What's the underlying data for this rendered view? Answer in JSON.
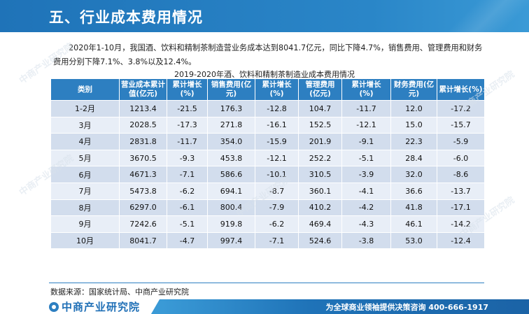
{
  "header": {
    "title": "五、行业成本费用情况"
  },
  "intro": {
    "text": "2020年1-10月，我国酒、饮料和精制茶制造营业务成本达到8041.7亿元，同比下降4.7%，销售费用、管理费用和财务费用分别下降7.1%、3.8%以及12.4%。"
  },
  "table": {
    "title": "2019-2020年酒、饮料和精制茶制造业成本费用情况",
    "headers": [
      "类别",
      "营业成本累计值(亿元)",
      "累计增长(%)",
      "销售费用(亿元)",
      "累计增长(%)",
      "管理费用(亿元)",
      "累计增长 (%)",
      "财务费用(亿元)",
      "累计增长(%)"
    ],
    "rows": [
      [
        "1-2月",
        "1213.4",
        "-21.5",
        "176.3",
        "-12.8",
        "104.7",
        "-11.7",
        "12.0",
        "-17.2"
      ],
      [
        "3月",
        "2028.5",
        "-17.3",
        "271.8",
        "-16.1",
        "152.5",
        "-12.1",
        "15.0",
        "-15.7"
      ],
      [
        "4月",
        "2831.8",
        "-11.7",
        "354.0",
        "-15.9",
        "201.9",
        "-9.1",
        "22.3",
        "-5.9"
      ],
      [
        "5月",
        "3670.5",
        "-9.3",
        "453.8",
        "-12.1",
        "252.2",
        "-5.1",
        "28.4",
        "-6.0"
      ],
      [
        "6月",
        "4671.3",
        "-7.1",
        "586.6",
        "-10.1",
        "310.5",
        "-3.9",
        "32.0",
        "-8.6"
      ],
      [
        "7月",
        "5473.8",
        "-6.2",
        "694.1",
        "-8.7",
        "360.1",
        "-4.1",
        "36.6",
        "-13.7"
      ],
      [
        "8月",
        "6297.0",
        "-6.1",
        "800.4",
        "-7.9",
        "410.2",
        "-4.2",
        "41.8",
        "-17.1"
      ],
      [
        "9月",
        "7242.6",
        "-5.1",
        "919.8",
        "-6.2",
        "469.4",
        "-4.3",
        "46.1",
        "-14.2"
      ],
      [
        "10月",
        "8041.7",
        "-4.7",
        "997.4",
        "-7.1",
        "524.6",
        "-3.8",
        "53.0",
        "-12.4"
      ]
    ]
  },
  "source": "数据来源：国家统计局、中商产业研究院",
  "footer": {
    "logo_text": "中商产业研究院",
    "slogan": "为全球商业领袖提供决策咨询   400-666-1917"
  },
  "watermark": {
    "text": "中商产业研究院"
  },
  "colors": {
    "header_blue": "#1f73b8",
    "table_header": "#2d7fc1",
    "row_odd": "#d2dded",
    "row_even": "#e8eef7"
  }
}
